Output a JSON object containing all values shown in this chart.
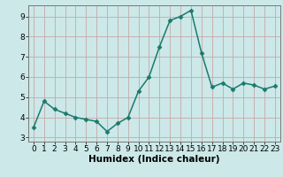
{
  "x": [
    0,
    1,
    2,
    3,
    4,
    5,
    6,
    7,
    8,
    9,
    10,
    11,
    12,
    13,
    14,
    15,
    16,
    17,
    18,
    19,
    20,
    21,
    22,
    23
  ],
  "y": [
    3.5,
    4.8,
    4.4,
    4.2,
    4.0,
    3.9,
    3.8,
    3.3,
    3.7,
    4.0,
    5.3,
    6.0,
    7.5,
    8.8,
    9.0,
    9.3,
    7.2,
    5.5,
    5.7,
    5.4,
    5.7,
    5.6,
    5.4,
    5.55
  ],
  "xlabel": "Humidex (Indice chaleur)",
  "line_color": "#1a7a6e",
  "marker": "D",
  "marker_size": 2.5,
  "linewidth": 1.1,
  "bg_color": "#cce8e8",
  "grid_color_major": "#c8a8a8",
  "grid_color_minor": "#ddc0c0",
  "ylim": [
    2.8,
    9.55
  ],
  "xlim": [
    -0.5,
    23.5
  ],
  "yticks": [
    3,
    4,
    5,
    6,
    7,
    8,
    9
  ],
  "xticks": [
    0,
    1,
    2,
    3,
    4,
    5,
    6,
    7,
    8,
    9,
    10,
    11,
    12,
    13,
    14,
    15,
    16,
    17,
    18,
    19,
    20,
    21,
    22,
    23
  ],
  "xlabel_fontsize": 7.5,
  "tick_fontsize": 6.5
}
